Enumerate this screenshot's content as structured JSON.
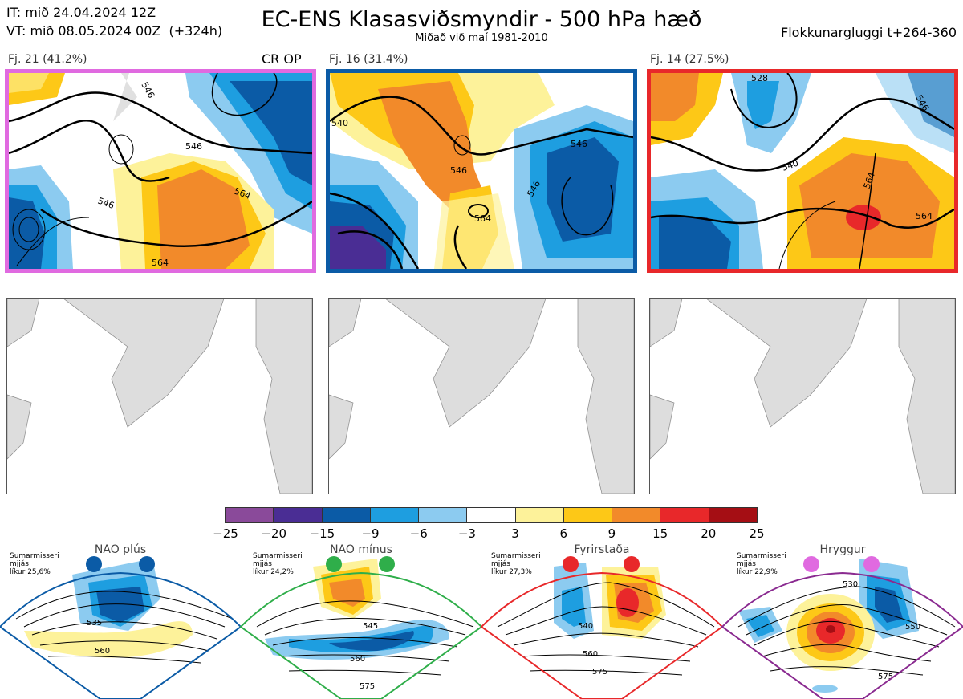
{
  "header": {
    "it_line": "IT: mið 24.04.2024 12Z",
    "vt_line": "VT: mið 08.05.2024 00Z  (+324h)",
    "title": "EC-ENS Klasasviðsmyndir - 500 hPa hæð",
    "subtitle": "Miðað við maí 1981-2010",
    "window": "Flokkunargluggi t+264-360"
  },
  "clusters": [
    {
      "label": "Fj. 21 (41.2%)",
      "border_color": "#e06ae0",
      "contours": [
        "546",
        "564",
        "546",
        "564",
        "546"
      ]
    },
    {
      "label": "Fj. 16 (31.4%)",
      "border_color": "#0b5ba6",
      "contours": [
        "540",
        "546",
        "546",
        "546",
        "564"
      ]
    },
    {
      "label": "Fj. 14 (27.5%)",
      "border_color": "#e8282a",
      "contours": [
        "528",
        "540",
        "546",
        "564",
        "564"
      ]
    }
  ],
  "cluster1_tag": "CR OP",
  "colorbar": {
    "colors": [
      "#8a4a9a",
      "#4a2d94",
      "#0b5ba6",
      "#1e9ee0",
      "#8ccbf0",
      "#ffffff",
      "#fdf29a",
      "#fdc817",
      "#f28a2a",
      "#e8282a",
      "#a50e14"
    ],
    "ticks": [
      "−25",
      "−20",
      "−15",
      "−9",
      "−6",
      "−3",
      "3",
      "6",
      "9",
      "15",
      "20",
      "25"
    ]
  },
  "regimes": [
    {
      "title": "NAO plús",
      "prob": [
        "Sumarmisseri",
        "mjjás",
        "líkur 25,6%"
      ],
      "frame_color": "#0b5ba6",
      "dot_color": "#0b5ba6",
      "contours": [
        "535",
        "560"
      ]
    },
    {
      "title": "NAO mínus",
      "prob": [
        "Sumarmisseri",
        "mjjás",
        "líkur 24,2%"
      ],
      "frame_color": "#2fae4a",
      "dot_color": "#2fae4a",
      "contours": [
        "545",
        "560",
        "575"
      ]
    },
    {
      "title": "Fyrirstaða",
      "prob": [
        "Sumarmisseri",
        "mjjás",
        "líkur 27,3%"
      ],
      "frame_color": "#e8282a",
      "dot_color": "#e8282a",
      "contours": [
        "540",
        "560",
        "575"
      ]
    },
    {
      "title": "Hryggur",
      "prob": [
        "Sumarmisseri",
        "mjjás",
        "líkur 22,9%"
      ],
      "frame_color": "#8a2a90",
      "dot_color": "#e06ae0",
      "contours": [
        "530",
        "550",
        "575"
      ]
    }
  ]
}
